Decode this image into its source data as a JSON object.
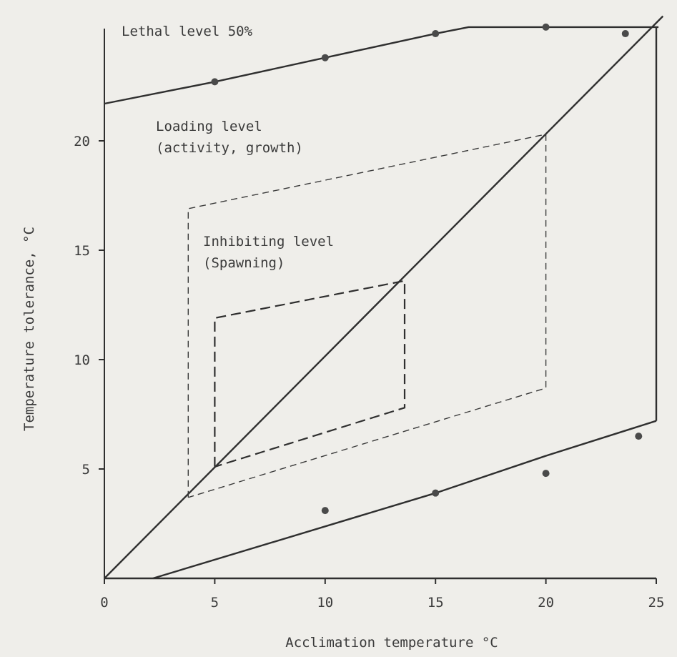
{
  "chart_data": {
    "type": "line",
    "xlabel": "Acclimation temperature  °C",
    "ylabel": "Temperature tolerance, °C",
    "xlim": [
      0,
      25
    ],
    "ylim": [
      0,
      25
    ],
    "x_ticks": [
      0,
      5,
      10,
      15,
      20,
      25
    ],
    "y_ticks": [
      5,
      10,
      15,
      20
    ],
    "x_tick_labels": [
      "0",
      "5",
      "10",
      "15",
      "20",
      "25"
    ],
    "y_tick_labels": [
      "5",
      "10",
      "15",
      "20"
    ],
    "grid": false,
    "annotations": [
      {
        "id": "lethal",
        "lines": [
          "Lethal level 50%"
        ]
      },
      {
        "id": "loading",
        "lines": [
          "Loading level",
          "(activity, growth)"
        ]
      },
      {
        "id": "inhibiting",
        "lines": [
          "Inhibiting level",
          "(Spawning)"
        ]
      }
    ],
    "series": [
      {
        "style": "solid",
        "points": [
          [
            0,
            21.7
          ],
          [
            5,
            22.7
          ],
          [
            10,
            23.8
          ],
          [
            15,
            24.9
          ],
          [
            16.5,
            25.2
          ],
          [
            25.1,
            25.2
          ]
        ]
      },
      {
        "style": "solid",
        "points": [
          [
            0,
            0
          ],
          [
            25.3,
            25.7
          ]
        ]
      },
      {
        "style": "solid",
        "points": [
          [
            2.2,
            0
          ],
          [
            15,
            3.9
          ],
          [
            20,
            5.6
          ],
          [
            25,
            7.2
          ]
        ]
      },
      {
        "style": "solid",
        "points": [
          [
            25,
            25.2
          ],
          [
            25,
            7.2
          ]
        ]
      },
      {
        "style": "solid",
        "points": [
          [
            0,
            0
          ],
          [
            25,
            0
          ]
        ]
      },
      {
        "style": "dashed-fine",
        "points": [
          [
            3.8,
            3.7
          ],
          [
            3.8,
            16.9
          ],
          [
            20,
            20.3
          ],
          [
            20,
            8.7
          ],
          [
            3.8,
            3.7
          ]
        ]
      },
      {
        "style": "dashed-bold",
        "points": [
          [
            5,
            5.1
          ],
          [
            5,
            11.9
          ],
          [
            13.6,
            13.6
          ],
          [
            13.6,
            7.8
          ],
          [
            5,
            5.1
          ]
        ]
      }
    ],
    "markers": [
      [
        5,
        22.7
      ],
      [
        10,
        23.8
      ],
      [
        15,
        24.9
      ],
      [
        20,
        25.2
      ],
      [
        23.6,
        24.9
      ],
      [
        10,
        3.1
      ],
      [
        15,
        3.9
      ],
      [
        20,
        4.8
      ],
      [
        24.2,
        6.5
      ]
    ]
  }
}
